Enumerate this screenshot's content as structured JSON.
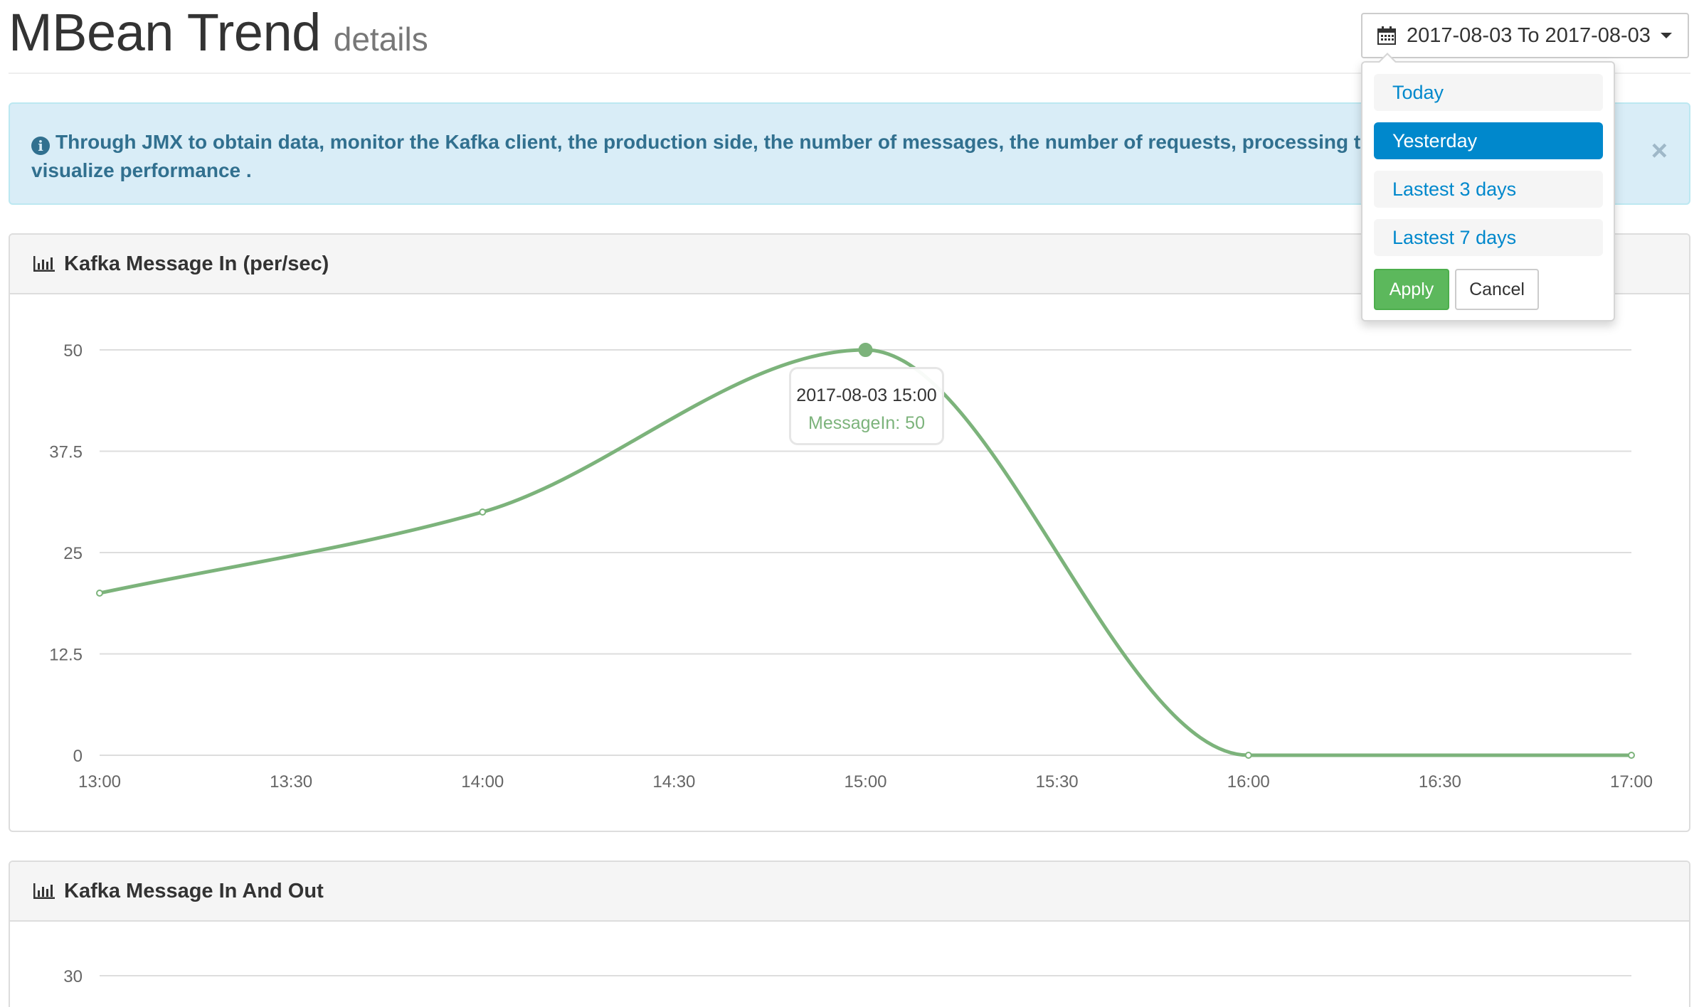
{
  "header": {
    "title": "MBean Trend",
    "subtitle": "details"
  },
  "date_picker": {
    "label": "2017-08-03 To 2017-08-03",
    "ranges": [
      "Today",
      "Yesterday",
      "Lastest 3 days",
      "Lastest 7 days"
    ],
    "active_range": "Yesterday",
    "apply_label": "Apply",
    "cancel_label": "Cancel"
  },
  "alert": {
    "text": "Through JMX to obtain data, monitor the Kafka client, the production side, the number of messages, the number of requests, processing t",
    "text_continued": "visualize performance .",
    "close": "×"
  },
  "panels": [
    {
      "title": "Kafka Message In (per/sec)"
    },
    {
      "title": "Kafka Message In And Out"
    }
  ],
  "tooltip": {
    "date": "2017-08-03 15:00",
    "value_label": "MessageIn: 50"
  },
  "colors": {
    "series": "#7cb37b",
    "active": "#0088cc",
    "apply": "#5cb85c",
    "alert_bg": "#d9edf7"
  },
  "chart_data": [
    {
      "type": "line",
      "title": "Kafka Message In (per/sec)",
      "x": [
        "13:00",
        "14:00",
        "15:00",
        "16:00",
        "17:00"
      ],
      "x_ticks": [
        "13:00",
        "13:30",
        "14:00",
        "14:30",
        "15:00",
        "15:30",
        "16:00",
        "16:30",
        "17:00"
      ],
      "y_ticks": [
        "0",
        "12.5",
        "25",
        "37.5",
        "50"
      ],
      "series": [
        {
          "name": "MessageIn",
          "values": [
            20,
            30,
            50,
            0,
            0
          ]
        }
      ],
      "ylim": [
        0,
        50
      ],
      "grid": true
    },
    {
      "type": "line",
      "title": "Kafka Message In And Out",
      "y_ticks": [
        "30"
      ],
      "grid": true
    }
  ]
}
